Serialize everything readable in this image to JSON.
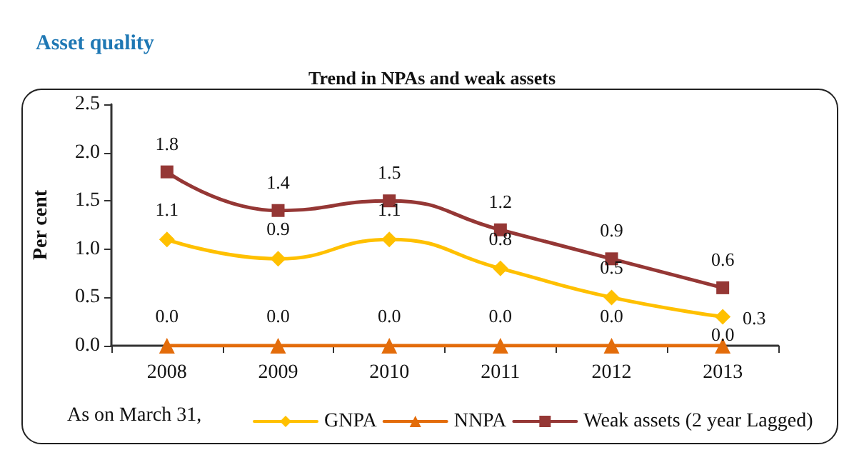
{
  "chart_data": {
    "type": "line",
    "title": "Asset quality",
    "subtitle": "Trend in NPAs and weak assets",
    "ylabel": "Per cent",
    "categories": [
      "2008",
      "2009",
      "2010",
      "2011",
      "2012",
      "2013"
    ],
    "series": [
      {
        "name": "GNPA",
        "color": "#ffc000",
        "marker": "diamond",
        "values": [
          1.1,
          0.9,
          1.1,
          0.8,
          0.5,
          0.3
        ],
        "value_labels": [
          "1.1",
          "0.9",
          "1.1",
          "0.8",
          "0.5",
          "0.3"
        ]
      },
      {
        "name": "NNPA",
        "color": "#e36c0a",
        "marker": "triangle",
        "values": [
          0.0,
          0.0,
          0.0,
          0.0,
          0.0,
          0.0
        ],
        "value_labels": [
          "0.0",
          "0.0",
          "0.0",
          "0.0",
          "0.0",
          "0.0"
        ]
      },
      {
        "name": "Weak assets (2 year Lagged)",
        "color": "#953735",
        "marker": "square",
        "values": [
          1.8,
          1.4,
          1.5,
          1.2,
          0.9,
          0.6
        ],
        "value_labels": [
          "1.8",
          "1.4",
          "1.5",
          "1.2",
          "0.9",
          "0.6"
        ]
      }
    ],
    "ylim": [
      0,
      2.5
    ],
    "yticks": [
      {
        "value": 0,
        "label": "0.0"
      },
      0.5,
      {
        "value": 1,
        "label": "1.0"
      },
      1.5,
      {
        "value": 2,
        "label": "2.0"
      },
      2.5
    ],
    "grid": false,
    "legend": "bottom",
    "annotations": [
      "As on March 31,"
    ]
  }
}
